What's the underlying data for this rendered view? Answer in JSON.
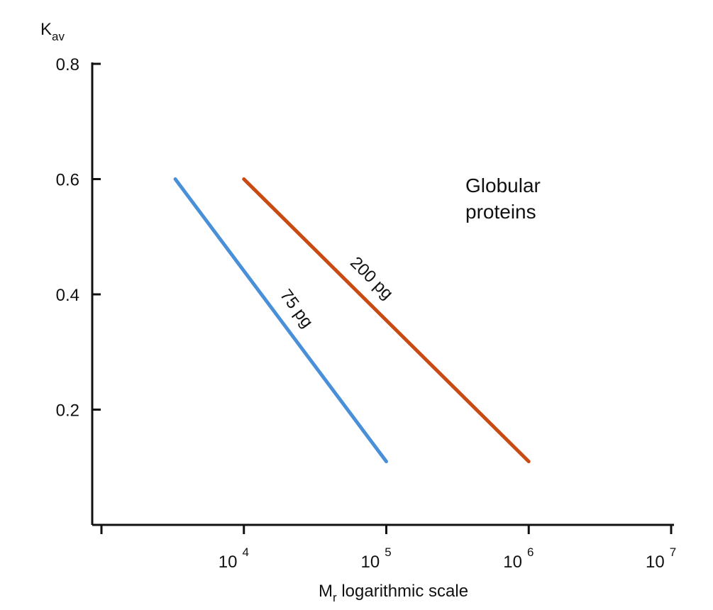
{
  "chart_data": {
    "type": "line",
    "title": "",
    "xlabel": {
      "main": "M",
      "sub": "r",
      "rest": " logarithmic scale"
    },
    "ylabel": {
      "main": "K",
      "sub": "av"
    },
    "x_scale": "log",
    "xlim": [
      1000,
      10000000
    ],
    "ylim": [
      0,
      0.8
    ],
    "x_ticks": [
      {
        "value": 1000,
        "base": "",
        "exp": ""
      },
      {
        "value": 10000,
        "base": "10",
        "exp": "4"
      },
      {
        "value": 100000,
        "base": "10",
        "exp": "5"
      },
      {
        "value": 1000000,
        "base": "10",
        "exp": "6"
      },
      {
        "value": 10000000,
        "base": "10",
        "exp": "7"
      }
    ],
    "y_ticks": [
      {
        "value": 0.2,
        "label": "0.2"
      },
      {
        "value": 0.4,
        "label": "0.4"
      },
      {
        "value": 0.6,
        "label": "0.6"
      },
      {
        "value": 0.8,
        "label": "0.8"
      }
    ],
    "grid": false,
    "series": [
      {
        "name": "75 pg",
        "color": "#4a90d9",
        "x": [
          3300,
          100000
        ],
        "y": [
          0.6,
          0.11
        ]
      },
      {
        "name": "200 pg",
        "color": "#c84b14",
        "x": [
          10000,
          1000000
        ],
        "y": [
          0.6,
          0.11
        ]
      }
    ],
    "annotations": [
      {
        "lines": [
          "Globular",
          "proteins"
        ]
      }
    ]
  }
}
